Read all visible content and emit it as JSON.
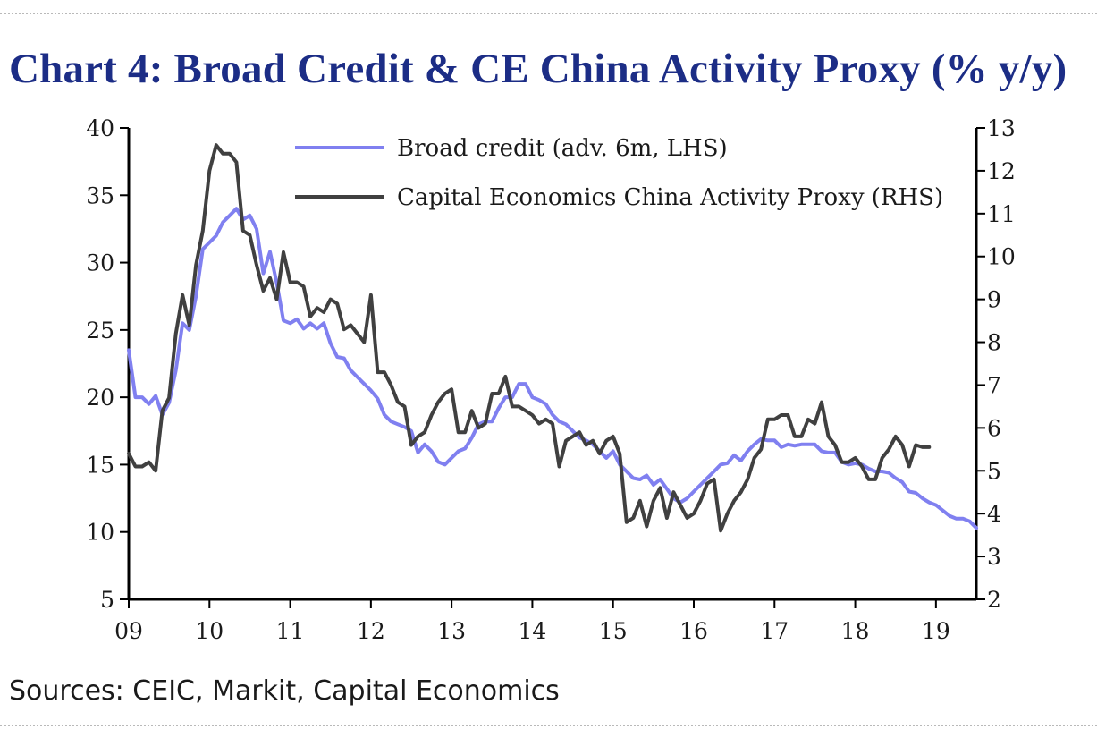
{
  "title": "Chart 4: Broad Credit & CE China Activity Proxy (% y/y)",
  "source": "Sources: CEIC, Markit, Capital Economics",
  "colors": {
    "title": "#1c2d86",
    "credit_line": "#8080f0",
    "proxy_line": "#404040",
    "axis": "#000000"
  },
  "chart_data": {
    "type": "line",
    "title": "Chart 4: Broad Credit & CE China Activity Proxy (% y/y)",
    "x_start": 2009.0,
    "x_step_months": 1,
    "xlim": [
      2009.0,
      2019.5
    ],
    "x_ticks": [
      2009,
      2010,
      2011,
      2012,
      2013,
      2014,
      2015,
      2016,
      2017,
      2018,
      2019
    ],
    "x_tick_labels": [
      "09",
      "10",
      "11",
      "12",
      "13",
      "14",
      "15",
      "16",
      "17",
      "18",
      "19"
    ],
    "left_axis": {
      "lim": [
        5,
        40
      ],
      "ticks": [
        5,
        10,
        15,
        20,
        25,
        30,
        35,
        40
      ],
      "tick_labels": [
        "5",
        "10",
        "15",
        "20",
        "25",
        "30",
        "35",
        "40"
      ]
    },
    "right_axis": {
      "lim": [
        2,
        13
      ],
      "ticks": [
        2,
        3,
        4,
        5,
        6,
        7,
        8,
        9,
        10,
        11,
        12,
        13
      ],
      "tick_labels": [
        "2",
        "3",
        "4",
        "5",
        "6",
        "7",
        "8",
        "9",
        "10",
        "11",
        "12",
        "13"
      ]
    },
    "legend_position": "top-center",
    "series": [
      {
        "name": "Broad credit (adv. 6m, LHS)",
        "axis": "left",
        "values": [
          23.5,
          20.0,
          20.0,
          19.5,
          20.1,
          18.7,
          19.6,
          22.0,
          25.5,
          25.0,
          27.5,
          31.0,
          31.5,
          32.0,
          33.0,
          33.5,
          34.0,
          33.2,
          33.5,
          32.5,
          29.2,
          30.8,
          28.5,
          25.7,
          25.5,
          25.8,
          25.1,
          25.5,
          25.1,
          25.5,
          24.0,
          23.0,
          22.9,
          22.0,
          21.5,
          21.0,
          20.5,
          19.9,
          18.7,
          18.2,
          18.0,
          17.8,
          17.5,
          15.9,
          16.5,
          16.0,
          15.2,
          15.0,
          15.5,
          16.0,
          16.2,
          17.0,
          18.0,
          18.2,
          18.2,
          19.2,
          20.0,
          20.0,
          21.0,
          21.0,
          20.0,
          19.8,
          19.5,
          18.7,
          18.2,
          18.0,
          17.5,
          17.0,
          16.8,
          16.5,
          16.0,
          15.5,
          16.0,
          15.0,
          14.5,
          14.0,
          13.9,
          14.2,
          13.5,
          13.9,
          13.2,
          12.5,
          12.2,
          12.5,
          13.0,
          13.5,
          14.0,
          14.5,
          15.0,
          15.1,
          15.7,
          15.3,
          16.0,
          16.5,
          16.9,
          16.8,
          16.8,
          16.3,
          16.5,
          16.4,
          16.5,
          16.5,
          16.5,
          16.0,
          15.9,
          15.9,
          15.2,
          15.0,
          15.1,
          15.0,
          14.7,
          14.5,
          14.5,
          14.4,
          14.0,
          13.7,
          13.0,
          12.9,
          12.5,
          12.2,
          12.0,
          11.6,
          11.2,
          11.0,
          11.0,
          10.8,
          10.3
        ]
      },
      {
        "name": "Capital Economics China Activity Proxy (RHS)",
        "axis": "right",
        "values": [
          5.4,
          5.1,
          5.1,
          5.2,
          5.0,
          6.4,
          6.7,
          8.2,
          9.1,
          8.4,
          9.8,
          10.6,
          12.0,
          12.6,
          12.4,
          12.4,
          12.2,
          10.6,
          10.5,
          9.8,
          9.2,
          9.5,
          9.0,
          10.1,
          9.4,
          9.4,
          9.3,
          8.6,
          8.8,
          8.7,
          9.0,
          8.9,
          8.3,
          8.4,
          8.2,
          8.0,
          9.1,
          7.3,
          7.3,
          7.0,
          6.6,
          6.5,
          5.6,
          5.8,
          5.9,
          6.3,
          6.6,
          6.8,
          6.9,
          5.9,
          5.9,
          6.4,
          6.0,
          6.1,
          6.8,
          6.8,
          7.2,
          6.5,
          6.5,
          6.4,
          6.3,
          6.1,
          6.2,
          6.1,
          5.1,
          5.7,
          5.8,
          5.9,
          5.6,
          5.7,
          5.4,
          5.7,
          5.8,
          5.4,
          3.8,
          3.9,
          4.3,
          3.7,
          4.3,
          4.6,
          3.9,
          4.5,
          4.2,
          3.9,
          4.0,
          4.3,
          4.7,
          4.8,
          3.6,
          4.0,
          4.3,
          4.5,
          4.8,
          5.3,
          5.5,
          6.2,
          6.2,
          6.3,
          6.3,
          5.8,
          5.8,
          6.2,
          6.1,
          6.6,
          5.8,
          5.6,
          5.2,
          5.2,
          5.3,
          5.1,
          4.8,
          4.8,
          5.3,
          5.5,
          5.8,
          5.6,
          5.1,
          5.6,
          5.55,
          5.55
        ]
      }
    ]
  }
}
